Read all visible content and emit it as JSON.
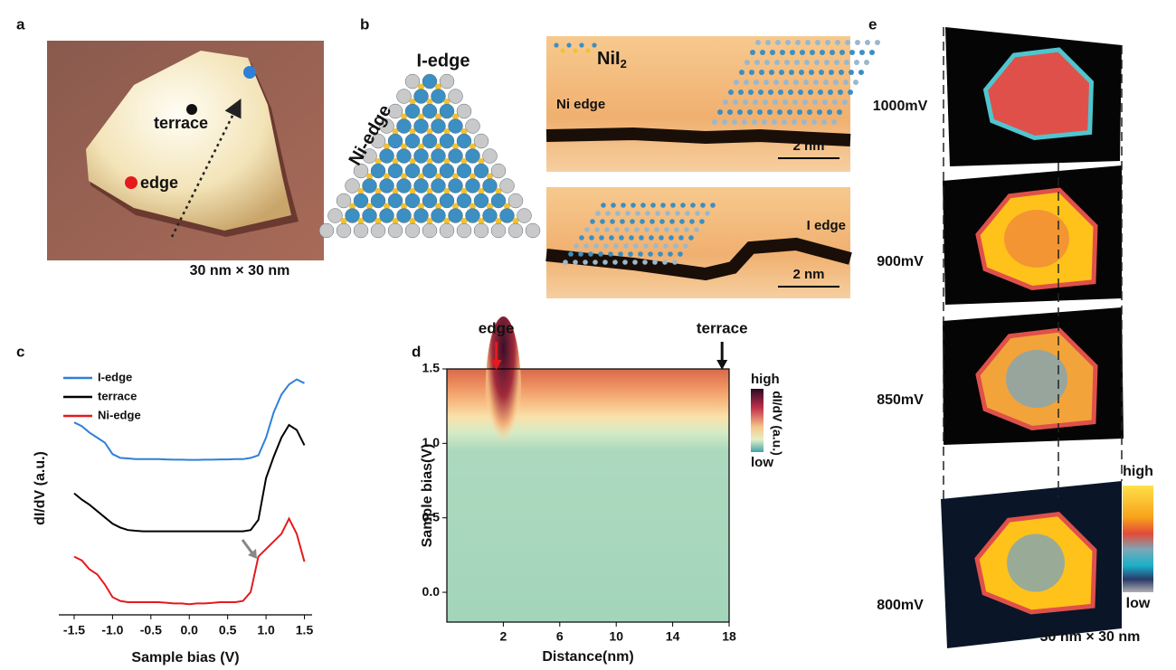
{
  "panel_labels": [
    "a",
    "b",
    "c",
    "d",
    "e"
  ],
  "panel_a": {
    "terrace": "terrace",
    "edge": "edge",
    "scale": "30 nm × 30 nm"
  },
  "panel_b": {
    "i_edge": "I-edge",
    "ni_edge": "Ni-edge",
    "compound": "NiI",
    "compound_sub": "2",
    "ni_edge_label": "Ni edge",
    "i_edge_label": "I edge",
    "scale_top": "2 nm",
    "scale_bottom": "2 nm"
  },
  "chart_data": [
    {
      "type": "line",
      "xlabel": "Sample bias (V)",
      "ylabel": "dI/dV (a.u.)",
      "x": [
        -1.5,
        -1.4,
        -1.3,
        -1.2,
        -1.1,
        -1.0,
        -0.9,
        -0.8,
        -0.7,
        -0.6,
        -0.5,
        -0.4,
        -0.3,
        -0.2,
        -0.1,
        0.0,
        0.1,
        0.2,
        0.3,
        0.4,
        0.5,
        0.6,
        0.7,
        0.8,
        0.9,
        1.0,
        1.1,
        1.2,
        1.3,
        1.4,
        1.5
      ],
      "xlim": [
        -1.7,
        1.6
      ],
      "xticks": [
        -1.5,
        {
          "value": -1,
          "label": "-1.0"
        },
        -0.5,
        {
          "value": 0,
          "label": "0.0"
        },
        0.5,
        {
          "value": 1,
          "label": "1.0"
        },
        1.5
      ],
      "ylim": [
        0,
        10
      ],
      "legend": "upper left",
      "series": [
        {
          "name": "I-edge",
          "color": "#2f7fd8",
          "values": [
            7.6,
            7.45,
            7.2,
            7.0,
            6.8,
            6.35,
            6.2,
            6.18,
            6.15,
            6.15,
            6.15,
            6.15,
            6.14,
            6.13,
            6.13,
            6.12,
            6.12,
            6.13,
            6.13,
            6.14,
            6.14,
            6.15,
            6.15,
            6.2,
            6.3,
            7.0,
            8.0,
            8.7,
            9.1,
            9.3,
            9.15
          ]
        },
        {
          "name": "terrace",
          "color": "#000000",
          "values": [
            4.8,
            4.55,
            4.35,
            4.1,
            3.85,
            3.6,
            3.45,
            3.35,
            3.32,
            3.3,
            3.3,
            3.3,
            3.3,
            3.3,
            3.3,
            3.3,
            3.3,
            3.3,
            3.3,
            3.3,
            3.3,
            3.3,
            3.3,
            3.35,
            3.75,
            5.4,
            6.25,
            7.0,
            7.5,
            7.3,
            6.7
          ]
        },
        {
          "name": "Ni-edge",
          "color": "#e41a1c",
          "values": [
            2.3,
            2.15,
            1.8,
            1.6,
            1.2,
            0.7,
            0.55,
            0.5,
            0.5,
            0.5,
            0.5,
            0.5,
            0.48,
            0.45,
            0.45,
            0.42,
            0.45,
            0.45,
            0.47,
            0.5,
            0.5,
            0.5,
            0.55,
            0.9,
            2.3,
            2.6,
            2.9,
            3.2,
            3.8,
            3.2,
            2.1
          ]
        }
      ]
    },
    {
      "type": "heatmap",
      "xlabel": "Distance(nm)",
      "ylabel": "Sample bias(V)",
      "xlim": [
        -2,
        18
      ],
      "xticks": [
        2,
        6,
        10,
        14,
        18
      ],
      "ylim": [
        -0.2,
        1.5
      ],
      "yticks": [
        {
          "value": 0,
          "label": "0.0"
        },
        {
          "value": 0.5,
          "label": "0.5"
        },
        {
          "value": 1,
          "label": "1.0"
        },
        {
          "value": 1.5,
          "label": "1.5"
        }
      ],
      "markers": [
        {
          "label": "edge",
          "x": 1.5,
          "color": "#e41a1c"
        },
        {
          "label": "terrace",
          "x": 17.5,
          "color": "#111111"
        }
      ],
      "colorbar": {
        "label": "dI/dV (a.u.)",
        "high": "high",
        "low": "low"
      }
    }
  ],
  "panel_e": {
    "biases": [
      "1000mV",
      "900mV",
      "850mV",
      "800mV"
    ],
    "high": "high",
    "low": "low",
    "scale": "30 nm × 30 nm"
  }
}
